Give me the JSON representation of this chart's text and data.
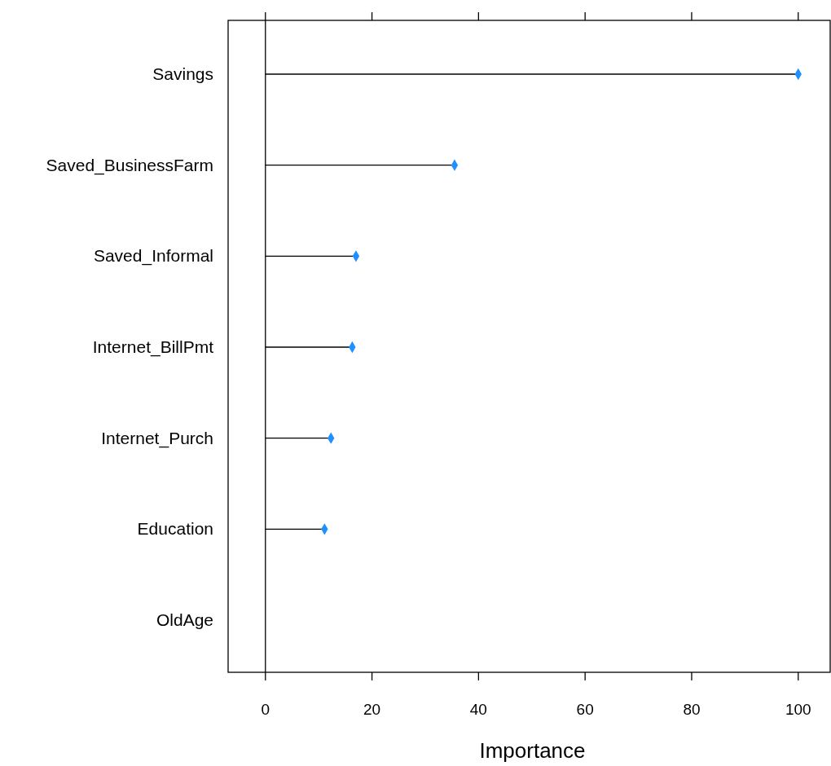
{
  "chart_data": {
    "type": "lollipop",
    "xlabel": "Importance",
    "orientation": "horizontal",
    "categories": [
      "Savings",
      "Saved_BusinessFarm",
      "Saved_Informal",
      "Internet_BillPmt",
      "Internet_Purch",
      "Education",
      "OldAge"
    ],
    "values": [
      100,
      35.5,
      17,
      16.3,
      12.3,
      11.1,
      null
    ],
    "color": "#1e90ff",
    "marker": "diamond",
    "xlim": [
      -7,
      106
    ],
    "xticks": [
      0,
      20,
      40,
      60,
      80,
      100
    ],
    "ref_lines": [
      {
        "axis": "x",
        "value": 0,
        "color": "#000000"
      }
    ]
  }
}
